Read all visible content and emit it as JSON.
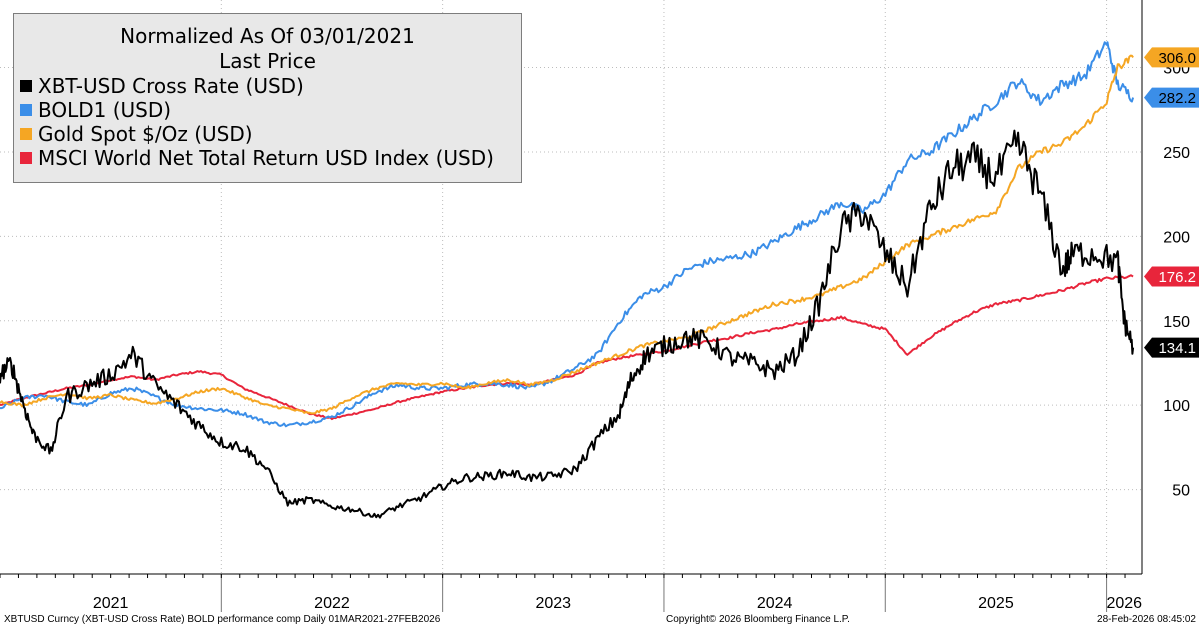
{
  "legend": {
    "title": "Normalized As Of 03/01/2021",
    "subtitle": "Last Price"
  },
  "footer": {
    "left": "XBTUSD Curncy (XBT-USD Cross Rate) BOLD performance comp Daily 01MAR2021-27FEB2026",
    "middle": "Copyright© 2026 Bloomberg Finance L.P.",
    "right": "28-Feb-2026 08:45:02"
  },
  "chart_data": {
    "type": "line",
    "ylim": [
      0,
      340
    ],
    "yticks": [
      50,
      100,
      150,
      200,
      250,
      300
    ],
    "year_ticks": [
      "2021",
      "2022",
      "2023",
      "2024",
      "2025",
      "2026"
    ],
    "grid": true,
    "legend_position": "top-left",
    "series": [
      {
        "name": "XBT-USD Cross Rate (USD)",
        "color": "#000000",
        "last_label": "134.1",
        "last_value": 134.1,
        "points": [
          [
            2021.0,
            118
          ],
          [
            2021.05,
            125
          ],
          [
            2021.1,
            103
          ],
          [
            2021.15,
            83
          ],
          [
            2021.23,
            72
          ],
          [
            2021.3,
            105
          ],
          [
            2021.4,
            112
          ],
          [
            2021.5,
            118
          ],
          [
            2021.6,
            130
          ],
          [
            2021.7,
            112
          ],
          [
            2021.8,
            100
          ],
          [
            2021.9,
            88
          ],
          [
            2022.0,
            78
          ],
          [
            2022.1,
            75
          ],
          [
            2022.2,
            63
          ],
          [
            2022.3,
            42
          ],
          [
            2022.4,
            44
          ],
          [
            2022.5,
            40
          ],
          [
            2022.6,
            38
          ],
          [
            2022.7,
            34
          ],
          [
            2022.8,
            40
          ],
          [
            2022.9,
            45
          ],
          [
            2023.0,
            52
          ],
          [
            2023.1,
            57
          ],
          [
            2023.2,
            58
          ],
          [
            2023.3,
            60
          ],
          [
            2023.4,
            57
          ],
          [
            2023.5,
            58
          ],
          [
            2023.6,
            62
          ],
          [
            2023.7,
            80
          ],
          [
            2023.8,
            95
          ],
          [
            2023.85,
            115
          ],
          [
            2023.92,
            130
          ],
          [
            2024.0,
            135
          ],
          [
            2024.1,
            140
          ],
          [
            2024.2,
            138
          ],
          [
            2024.3,
            128
          ],
          [
            2024.4,
            125
          ],
          [
            2024.5,
            120
          ],
          [
            2024.6,
            130
          ],
          [
            2024.7,
            160
          ],
          [
            2024.8,
            205
          ],
          [
            2024.9,
            215
          ],
          [
            2025.0,
            190
          ],
          [
            2025.1,
            170
          ],
          [
            2025.2,
            215
          ],
          [
            2025.3,
            240
          ],
          [
            2025.4,
            245
          ],
          [
            2025.5,
            235
          ],
          [
            2025.6,
            255
          ],
          [
            2025.7,
            225
          ],
          [
            2025.8,
            180
          ],
          [
            2025.85,
            190
          ],
          [
            2025.95,
            190
          ],
          [
            2026.05,
            185
          ],
          [
            2026.08,
            150
          ],
          [
            2026.12,
            134.1
          ]
        ]
      },
      {
        "name": "BOLD1 (USD)",
        "color": "#3b8ee8",
        "last_label": "282.2",
        "last_value": 282.2,
        "points": [
          [
            2021.0,
            98
          ],
          [
            2021.1,
            104
          ],
          [
            2021.2,
            106
          ],
          [
            2021.3,
            102
          ],
          [
            2021.4,
            100
          ],
          [
            2021.5,
            107
          ],
          [
            2021.6,
            110
          ],
          [
            2021.7,
            105
          ],
          [
            2021.8,
            100
          ],
          [
            2021.9,
            98
          ],
          [
            2022.0,
            97
          ],
          [
            2022.1,
            95
          ],
          [
            2022.2,
            90
          ],
          [
            2022.3,
            88
          ],
          [
            2022.4,
            90
          ],
          [
            2022.5,
            93
          ],
          [
            2022.6,
            100
          ],
          [
            2022.7,
            108
          ],
          [
            2022.8,
            112
          ],
          [
            2022.9,
            110
          ],
          [
            2023.0,
            110
          ],
          [
            2023.1,
            112
          ],
          [
            2023.2,
            113
          ],
          [
            2023.3,
            112
          ],
          [
            2023.4,
            110
          ],
          [
            2023.5,
            115
          ],
          [
            2023.6,
            122
          ],
          [
            2023.7,
            130
          ],
          [
            2023.8,
            150
          ],
          [
            2023.9,
            165
          ],
          [
            2024.0,
            170
          ],
          [
            2024.1,
            180
          ],
          [
            2024.2,
            185
          ],
          [
            2024.3,
            187
          ],
          [
            2024.4,
            190
          ],
          [
            2024.5,
            197
          ],
          [
            2024.6,
            205
          ],
          [
            2024.7,
            212
          ],
          [
            2024.8,
            220
          ],
          [
            2024.9,
            215
          ],
          [
            2025.0,
            225
          ],
          [
            2025.1,
            245
          ],
          [
            2025.2,
            250
          ],
          [
            2025.3,
            260
          ],
          [
            2025.4,
            270
          ],
          [
            2025.5,
            280
          ],
          [
            2025.6,
            292
          ],
          [
            2025.7,
            280
          ],
          [
            2025.8,
            290
          ],
          [
            2025.9,
            295
          ],
          [
            2026.0,
            315
          ],
          [
            2026.05,
            290
          ],
          [
            2026.12,
            282.2
          ]
        ]
      },
      {
        "name": "Gold Spot $/Oz (USD)",
        "color": "#f5a623",
        "last_label": "306.0",
        "last_value": 306.0,
        "points": [
          [
            2021.0,
            102
          ],
          [
            2021.1,
            100
          ],
          [
            2021.2,
            104
          ],
          [
            2021.3,
            107
          ],
          [
            2021.4,
            104
          ],
          [
            2021.5,
            106
          ],
          [
            2021.6,
            103
          ],
          [
            2021.7,
            101
          ],
          [
            2021.8,
            104
          ],
          [
            2021.9,
            108
          ],
          [
            2022.0,
            110
          ],
          [
            2022.1,
            105
          ],
          [
            2022.2,
            100
          ],
          [
            2022.3,
            98
          ],
          [
            2022.4,
            95
          ],
          [
            2022.5,
            98
          ],
          [
            2022.6,
            105
          ],
          [
            2022.7,
            110
          ],
          [
            2022.8,
            113
          ],
          [
            2022.9,
            112
          ],
          [
            2023.0,
            113
          ],
          [
            2023.1,
            110
          ],
          [
            2023.2,
            113
          ],
          [
            2023.3,
            115
          ],
          [
            2023.4,
            112
          ],
          [
            2023.5,
            115
          ],
          [
            2023.6,
            120
          ],
          [
            2023.7,
            125
          ],
          [
            2023.8,
            130
          ],
          [
            2023.9,
            135
          ],
          [
            2024.0,
            138
          ],
          [
            2024.1,
            140
          ],
          [
            2024.2,
            145
          ],
          [
            2024.3,
            150
          ],
          [
            2024.4,
            155
          ],
          [
            2024.5,
            160
          ],
          [
            2024.6,
            162
          ],
          [
            2024.7,
            165
          ],
          [
            2024.8,
            170
          ],
          [
            2024.9,
            175
          ],
          [
            2025.0,
            185
          ],
          [
            2025.1,
            195
          ],
          [
            2025.2,
            200
          ],
          [
            2025.3,
            205
          ],
          [
            2025.4,
            210
          ],
          [
            2025.5,
            215
          ],
          [
            2025.6,
            240
          ],
          [
            2025.7,
            250
          ],
          [
            2025.8,
            255
          ],
          [
            2025.9,
            265
          ],
          [
            2026.0,
            280
          ],
          [
            2026.05,
            300
          ],
          [
            2026.12,
            306.0
          ]
        ]
      },
      {
        "name": "MSCI World Net Total Return USD Index (USD)",
        "color": "#e8253b",
        "last_label": "176.2",
        "last_value": 176.2,
        "points": [
          [
            2021.0,
            100
          ],
          [
            2021.1,
            104
          ],
          [
            2021.2,
            107
          ],
          [
            2021.3,
            110
          ],
          [
            2021.4,
            112
          ],
          [
            2021.5,
            115
          ],
          [
            2021.6,
            117
          ],
          [
            2021.7,
            115
          ],
          [
            2021.8,
            118
          ],
          [
            2021.9,
            120
          ],
          [
            2022.0,
            118
          ],
          [
            2022.1,
            110
          ],
          [
            2022.2,
            105
          ],
          [
            2022.3,
            100
          ],
          [
            2022.4,
            95
          ],
          [
            2022.5,
            92
          ],
          [
            2022.6,
            95
          ],
          [
            2022.7,
            98
          ],
          [
            2022.8,
            102
          ],
          [
            2022.9,
            105
          ],
          [
            2023.0,
            108
          ],
          [
            2023.1,
            110
          ],
          [
            2023.2,
            112
          ],
          [
            2023.3,
            113
          ],
          [
            2023.4,
            112
          ],
          [
            2023.5,
            115
          ],
          [
            2023.6,
            118
          ],
          [
            2023.7,
            125
          ],
          [
            2023.8,
            128
          ],
          [
            2023.9,
            130
          ],
          [
            2024.0,
            132
          ],
          [
            2024.1,
            135
          ],
          [
            2024.2,
            138
          ],
          [
            2024.3,
            140
          ],
          [
            2024.4,
            143
          ],
          [
            2024.5,
            145
          ],
          [
            2024.6,
            148
          ],
          [
            2024.7,
            150
          ],
          [
            2024.8,
            152
          ],
          [
            2024.9,
            148
          ],
          [
            2025.0,
            145
          ],
          [
            2025.1,
            130
          ],
          [
            2025.2,
            140
          ],
          [
            2025.3,
            148
          ],
          [
            2025.4,
            155
          ],
          [
            2025.5,
            160
          ],
          [
            2025.6,
            162
          ],
          [
            2025.7,
            165
          ],
          [
            2025.8,
            168
          ],
          [
            2025.9,
            172
          ],
          [
            2026.0,
            175
          ],
          [
            2026.12,
            176.2
          ]
        ]
      }
    ]
  }
}
